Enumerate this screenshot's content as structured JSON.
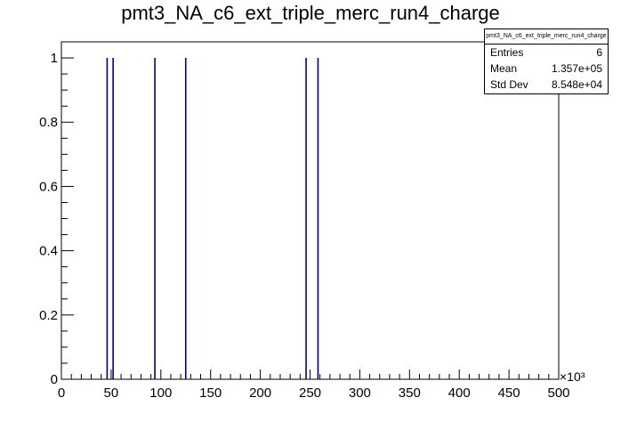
{
  "title": "pmt3_NA_c6_ext_triple_merc_run4_charge",
  "stats": {
    "name": "pmt3_NA_c6_ext_triple_merc_run4_charge",
    "rows": [
      {
        "label": "Entries",
        "value": "6"
      },
      {
        "label": "Mean",
        "value": "1.357e+05"
      },
      {
        "label": "Std Dev",
        "value": "8.548e+04"
      }
    ]
  },
  "chart_data": {
    "type": "bar",
    "title": "pmt3_NA_c6_ext_triple_merc_run4_charge",
    "xlabel": "",
    "ylabel": "",
    "x_multiplier_label": "×10³",
    "xlim": [
      0,
      500
    ],
    "ylim": [
      0,
      1.05
    ],
    "x_ticks": [
      0,
      50,
      100,
      150,
      200,
      250,
      300,
      350,
      400,
      450,
      500
    ],
    "y_ticks": [
      0,
      0.2,
      0.4,
      0.6,
      0.8,
      1
    ],
    "bar_color": "#00007f",
    "grid": false,
    "legend": "top-right stats box",
    "entries": [
      {
        "x": 46,
        "value": 1
      },
      {
        "x": 52,
        "value": 1
      },
      {
        "x": 94,
        "value": 1
      },
      {
        "x": 125,
        "value": 1
      },
      {
        "x": 246,
        "value": 1
      },
      {
        "x": 258,
        "value": 1
      }
    ]
  }
}
